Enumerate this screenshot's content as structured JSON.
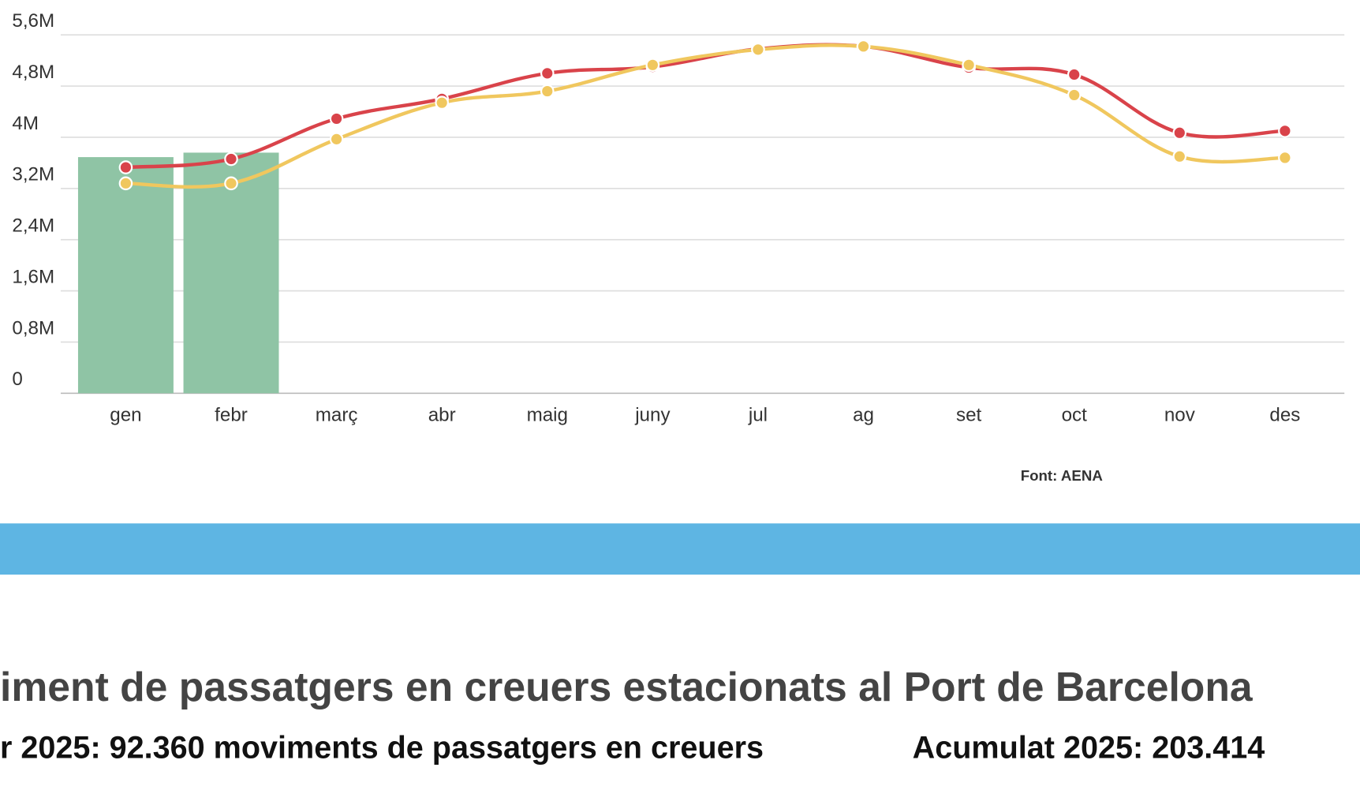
{
  "chart_data": {
    "type": "bar-line",
    "categories": [
      "gen",
      "febr",
      "març",
      "abr",
      "maig",
      "juny",
      "jul",
      "ag",
      "set",
      "oct",
      "nov",
      "des"
    ],
    "bars": {
      "color": "#8fc4a5",
      "values": [
        3690000,
        3760000,
        null,
        null,
        null,
        null,
        null,
        null,
        null,
        null,
        null,
        null
      ]
    },
    "series": [
      {
        "color": "#d9434a",
        "values": [
          3530000,
          3660000,
          4290000,
          4600000,
          5000000,
          5100000,
          5380000,
          5420000,
          5090000,
          4980000,
          4070000,
          4100000
        ]
      },
      {
        "color": "#f0c75e",
        "values": [
          3280000,
          3280000,
          3970000,
          4540000,
          4720000,
          5130000,
          5370000,
          5420000,
          5130000,
          4660000,
          3700000,
          3680000
        ]
      }
    ],
    "ylim": [
      0,
      5600000
    ],
    "yticks": [
      0,
      {
        "value": 800000,
        "label": "0,8M"
      },
      {
        "value": 1600000,
        "label": "1,6M"
      },
      {
        "value": 2400000,
        "label": "2,4M"
      },
      {
        "value": 3200000,
        "label": "3,2M"
      },
      {
        "value": 4000000,
        "label": "4M"
      },
      {
        "value": 4800000,
        "label": "4,8M"
      },
      {
        "value": 5600000,
        "label": "5,6M"
      }
    ],
    "grid": true,
    "source": "Font: AENA"
  },
  "section": {
    "title": "iment de passatgers en creuers estacionats al Port de Barcelona",
    "line1_left": "r 2025: 92.360  moviments de passatgers en creuers",
    "line1_right": "Acumulat 2025: 203.414"
  }
}
